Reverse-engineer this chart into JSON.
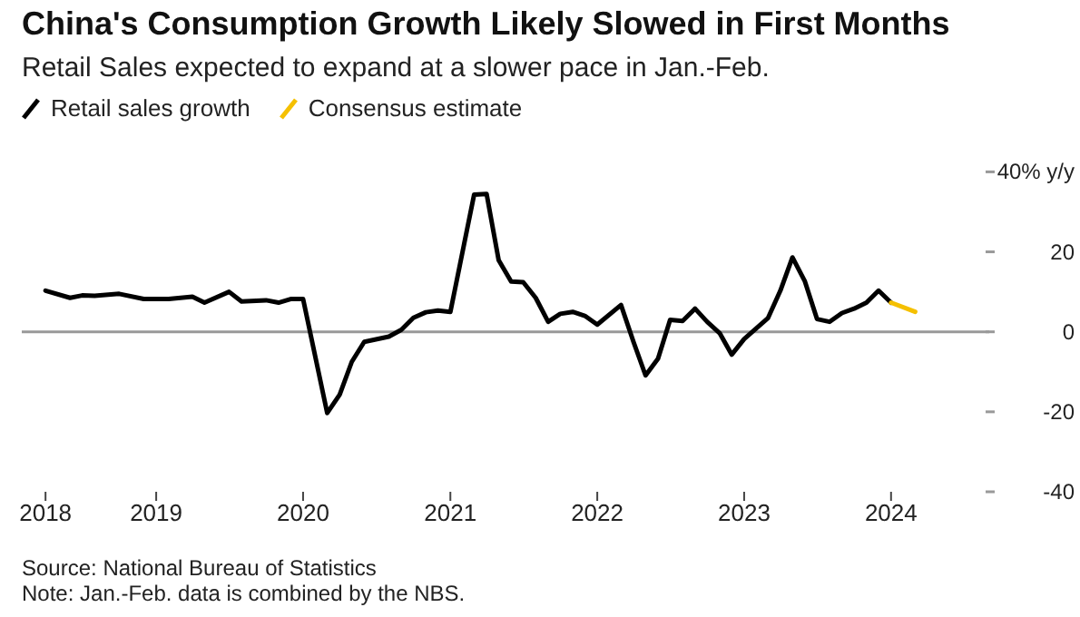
{
  "chart_data": {
    "type": "line",
    "title": "China's Consumption Growth Likely Slowed in First Months",
    "subtitle": "Retail Sales expected to expand at a slower pace in Jan.-Feb.",
    "series": [
      {
        "name": "Retail sales growth",
        "color": "#000000",
        "x": [
          "2018-04",
          "2018-06",
          "2018-07",
          "2018-08",
          "2018-10",
          "2018-12",
          "2019-02",
          "2019-04",
          "2019-05",
          "2019-07",
          "2019-08",
          "2019-10",
          "2019-11",
          "2019-12",
          "2020-01",
          "2020-03",
          "2020-04",
          "2020-05",
          "2020-06",
          "2020-08",
          "2020-09",
          "2020-10",
          "2020-11",
          "2020-12",
          "2021-01",
          "2021-03",
          "2021-04",
          "2021-05",
          "2021-06",
          "2021-07",
          "2021-08",
          "2021-09",
          "2021-10",
          "2021-11",
          "2021-12",
          "2022-01",
          "2022-03",
          "2022-04",
          "2022-05",
          "2022-06",
          "2022-07",
          "2022-08",
          "2022-09",
          "2022-10",
          "2022-11",
          "2022-12",
          "2023-01",
          "2023-03",
          "2023-04",
          "2023-05",
          "2023-06",
          "2023-07",
          "2023-08",
          "2023-09",
          "2023-10",
          "2023-11",
          "2023-12",
          "2024-01"
        ],
        "values": [
          10.3,
          8.5,
          9.1,
          9,
          9.5,
          8.2,
          8.2,
          8.8,
          7.3,
          10,
          7.6,
          7.9,
          7.3,
          8.2,
          8.2,
          -20.3,
          -15.7,
          -7.5,
          -2.5,
          -1.2,
          0.5,
          3.5,
          4.9,
          5.3,
          5,
          34.3,
          34.5,
          17.9,
          12.6,
          12.4,
          8.5,
          2.5,
          4.5,
          5,
          4,
          1.8,
          6.7,
          -2.5,
          -10.9,
          -6.7,
          3,
          2.7,
          5.8,
          2.5,
          -0.3,
          -5.7,
          -1.8,
          3.4,
          10.3,
          18.6,
          12.6,
          3.2,
          2.5,
          4.7,
          5.8,
          7.3,
          10.3,
          7.3
        ]
      },
      {
        "name": "Consensus estimate",
        "color": "#f5c000",
        "x": [
          "2024-01",
          "2024-03"
        ],
        "values": [
          7.3,
          5
        ]
      }
    ],
    "xlim": [
      "2018-02",
      "2024-09"
    ],
    "xticks": [
      {
        "value": "2018-04",
        "label": "2018"
      },
      "2019",
      "2020",
      "2021",
      "2022",
      "2023",
      "2024"
    ],
    "ylim": [
      -40,
      40
    ],
    "yticks": [
      {
        "value": 40,
        "label": "40% y/y"
      },
      20,
      0,
      -20,
      -40
    ],
    "ref_lines": [
      {
        "axis": "y",
        "value": 0,
        "color": "#999999"
      }
    ],
    "grid": false,
    "legend": "top left",
    "marker": "none",
    "line_style": "solid",
    "annotations": [
      "Source: National Bureau of Statistics",
      "Note: Jan.-Feb. data is combined by the NBS."
    ]
  }
}
